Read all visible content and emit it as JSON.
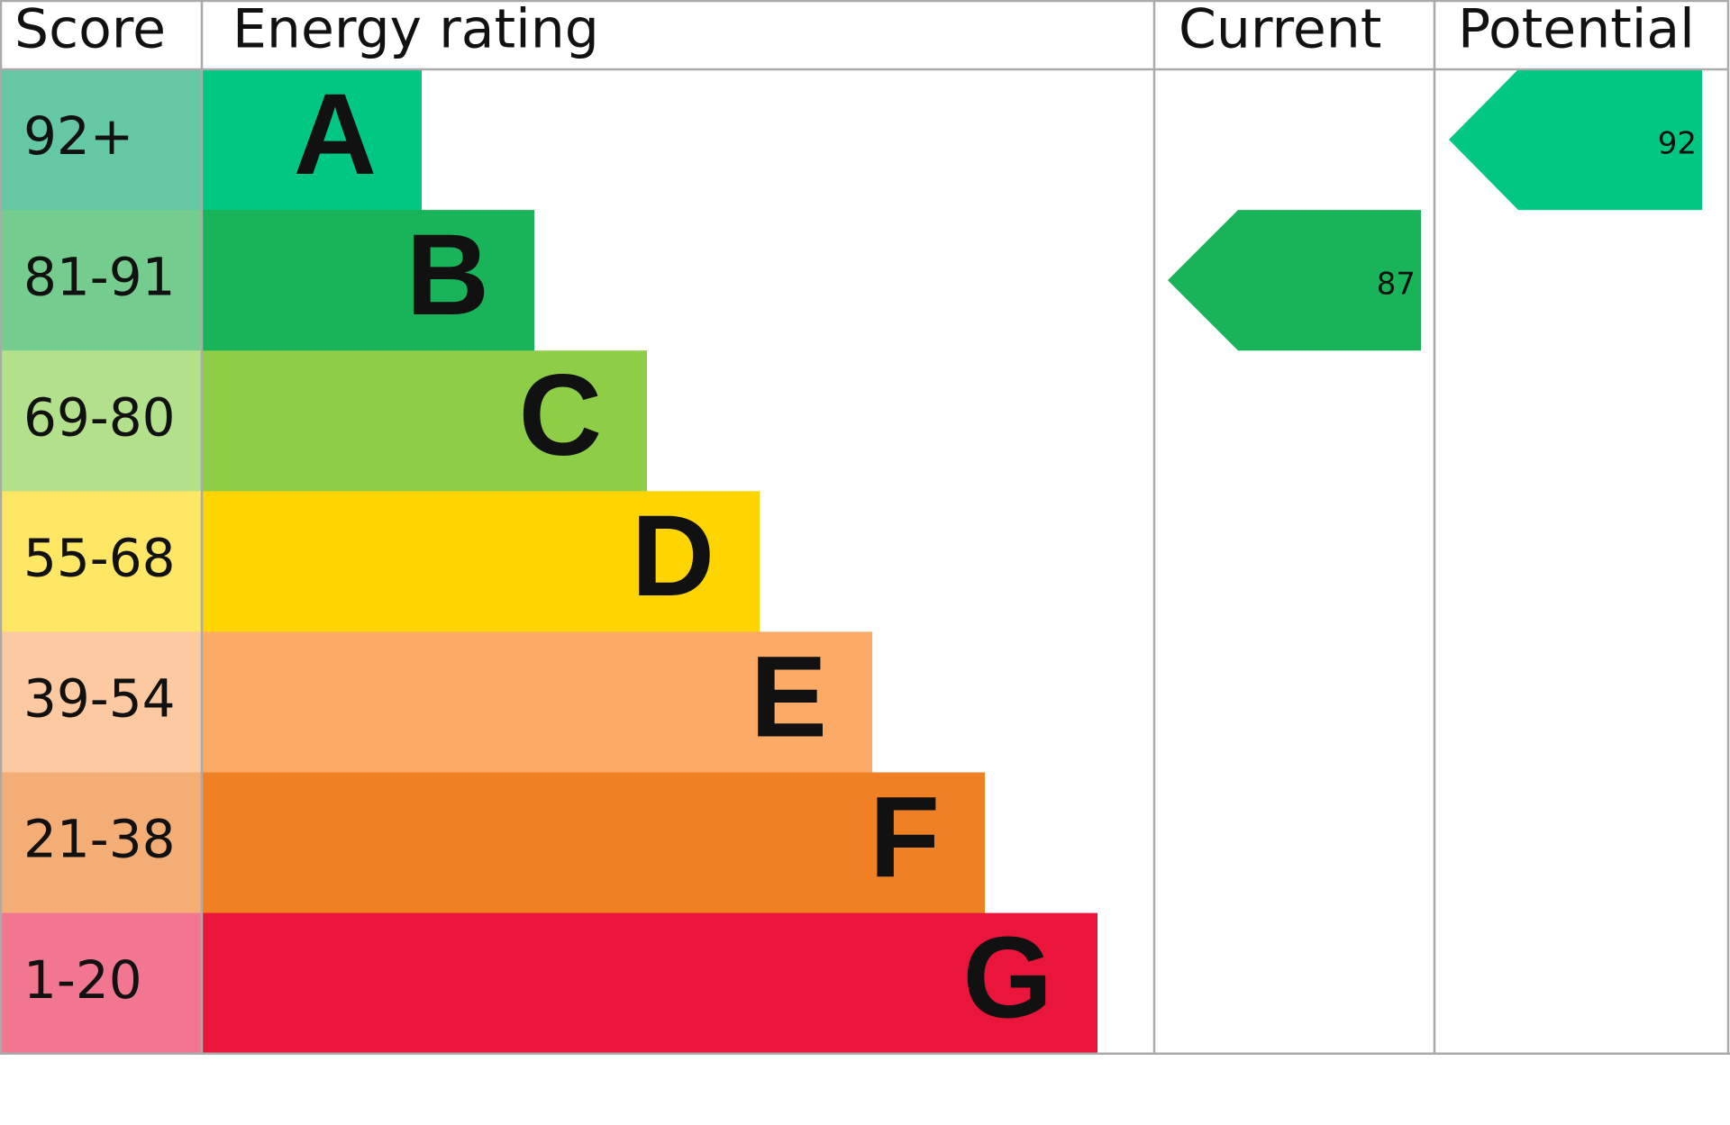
{
  "header": {
    "score": "Score",
    "rating": "Energy rating",
    "current": "Current",
    "potential": "Potential"
  },
  "bands": [
    {
      "score": "92+",
      "letter": "A",
      "color": "#00c781",
      "score_color": "#64c8a4"
    },
    {
      "score": "81-91",
      "letter": "B",
      "color": "#19b459",
      "score_color": "#74cc8f"
    },
    {
      "score": "69-80",
      "letter": "C",
      "color": "#8dce46",
      "score_color": "#b3e08a"
    },
    {
      "score": "55-68",
      "letter": "D",
      "color": "#ffd500",
      "score_color": "#ffe766"
    },
    {
      "score": "39-54",
      "letter": "E",
      "color": "#fcaa65",
      "score_color": "#fdc9a0"
    },
    {
      "score": "21-38",
      "letter": "F",
      "color": "#ef8023",
      "score_color": "#f4ae75"
    },
    {
      "score": "1-20",
      "letter": "G",
      "color": "#e9153b",
      "score_color": "#f27690"
    }
  ],
  "current": {
    "value": 87,
    "color": "#19b459"
  },
  "potential": {
    "value": 92,
    "color": "#00c781"
  }
}
